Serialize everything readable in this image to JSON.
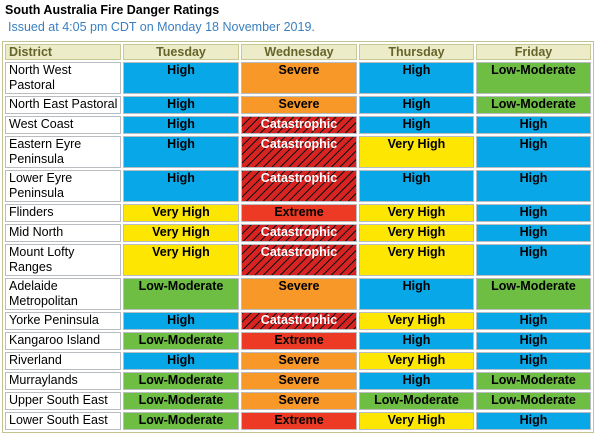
{
  "title": "South Australia Fire Danger Ratings",
  "issued": "Issued at 4:05 pm CDT on Monday 18 November 2019.",
  "colors": {
    "High": "#08a8e8",
    "Low-Moderate": "#6ebe44",
    "Very High": "#fde602",
    "Severe": "#f79828",
    "Extreme": "#ec3a25",
    "Catastrophic": "#d82323"
  },
  "table": {
    "headers": [
      "District",
      "Tuesday",
      "Wednesday",
      "Thursday",
      "Friday"
    ],
    "rows": [
      {
        "district": "North West Pastoral",
        "ratings": [
          "High",
          "Severe",
          "High",
          "Low-Moderate"
        ]
      },
      {
        "district": "North East Pastoral",
        "ratings": [
          "High",
          "Severe",
          "High",
          "Low-Moderate"
        ]
      },
      {
        "district": "West Coast",
        "ratings": [
          "High",
          "Catastrophic",
          "High",
          "High"
        ]
      },
      {
        "district": "Eastern Eyre Peninsula",
        "ratings": [
          "High",
          "Catastrophic",
          "Very High",
          "High"
        ]
      },
      {
        "district": "Lower Eyre Peninsula",
        "ratings": [
          "High",
          "Catastrophic",
          "High",
          "High"
        ]
      },
      {
        "district": "Flinders",
        "ratings": [
          "Very High",
          "Extreme",
          "Very High",
          "High"
        ]
      },
      {
        "district": "Mid North",
        "ratings": [
          "Very High",
          "Catastrophic",
          "Very High",
          "High"
        ]
      },
      {
        "district": "Mount Lofty Ranges",
        "ratings": [
          "Very High",
          "Catastrophic",
          "Very High",
          "High"
        ]
      },
      {
        "district": "Adelaide Metropolitan",
        "ratings": [
          "Low-Moderate",
          "Severe",
          "High",
          "Low-Moderate"
        ]
      },
      {
        "district": "Yorke Peninsula",
        "ratings": [
          "High",
          "Catastrophic",
          "Very High",
          "High"
        ]
      },
      {
        "district": "Kangaroo Island",
        "ratings": [
          "Low-Moderate",
          "Extreme",
          "High",
          "High"
        ]
      },
      {
        "district": "Riverland",
        "ratings": [
          "High",
          "Severe",
          "Very High",
          "High"
        ]
      },
      {
        "district": "Murraylands",
        "ratings": [
          "Low-Moderate",
          "Severe",
          "High",
          "Low-Moderate"
        ]
      },
      {
        "district": "Upper South East",
        "ratings": [
          "Low-Moderate",
          "Severe",
          "Low-Moderate",
          "Low-Moderate"
        ]
      },
      {
        "district": "Lower South East",
        "ratings": [
          "Low-Moderate",
          "Extreme",
          "Very High",
          "High"
        ]
      }
    ]
  }
}
